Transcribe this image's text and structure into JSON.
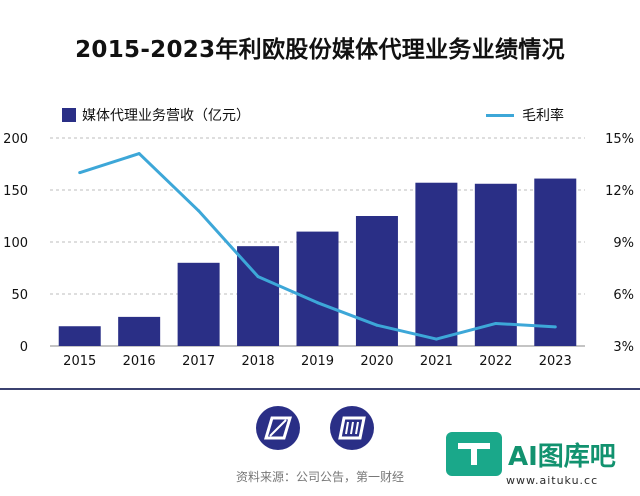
{
  "chart_data": {
    "type": "bar",
    "title": "2015-2023年利欧股份媒体代理业务业绩情况",
    "categories": [
      "2015",
      "2016",
      "2017",
      "2018",
      "2019",
      "2020",
      "2021",
      "2022",
      "2023"
    ],
    "series": [
      {
        "name": "媒体代理业务营收（亿元）",
        "type": "bar",
        "axis": "left",
        "values": [
          19,
          28,
          80,
          96,
          110,
          125,
          157,
          156,
          161
        ]
      },
      {
        "name": "毛利率",
        "type": "line",
        "axis": "right",
        "values": [
          13.0,
          14.1,
          10.8,
          7.0,
          5.5,
          4.2,
          3.4,
          4.3,
          4.1
        ]
      }
    ],
    "y_left": {
      "min": 0,
      "max": 200,
      "ticks": [
        "0",
        "50",
        "100",
        "150",
        "200"
      ]
    },
    "y_right": {
      "min": 3,
      "max": 15,
      "ticks": [
        "3%",
        "6%",
        "9%",
        "12%",
        "15%"
      ]
    },
    "grid": true,
    "legend_position": "top",
    "colors": {
      "bar": "#2a2f86",
      "line": "#3da7d8",
      "grid": "#bdbdbd"
    }
  },
  "footer": {
    "source": "资料来源：公司公告，第一财经",
    "watermark_text": "AI图库吧",
    "watermark_url": "www.aituku.cc"
  }
}
